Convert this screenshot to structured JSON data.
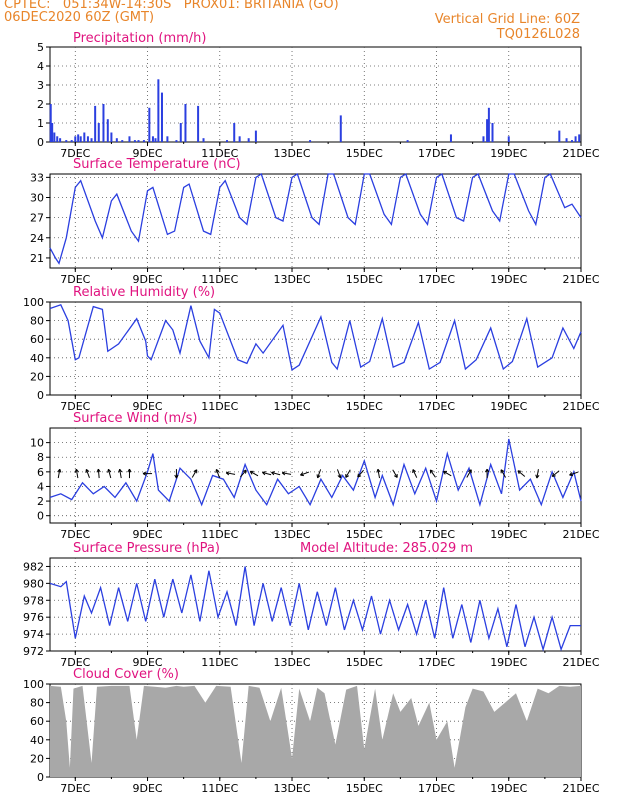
{
  "header": {
    "line1": "CPTEC:   051:34W-14:30S   PROX01: BRITANIA (GO)",
    "line2_left": "06DEC2020 60Z (GMT)",
    "line2_right": "Vertical Grid Line: 60Z",
    "line3_right": "TQ0126L028"
  },
  "colors": {
    "header": "#e8852a",
    "title": "#e0137f",
    "series": "#2b3fe0",
    "cloud": "#a8a8a8",
    "arrow": "#000000"
  },
  "x_axis": {
    "labels": [
      "7DEC",
      "9DEC",
      "11DEC",
      "13DEC",
      "15DEC",
      "17DEC",
      "19DEC",
      "21DEC"
    ],
    "label_days": [
      1,
      3,
      5,
      7,
      9,
      11,
      13,
      15
    ],
    "start_day": 0.3,
    "end_day": 15.0
  },
  "chart_data": [
    {
      "type": "bar",
      "title": "Precipitation (mm/h)",
      "ylim": [
        0,
        5
      ],
      "yticks": [
        "0",
        "1",
        "2",
        "3",
        "4",
        "5"
      ],
      "x_days": [
        0.32,
        0.36,
        0.42,
        0.5,
        0.58,
        0.75,
        0.9,
        1.0,
        1.08,
        1.15,
        1.25,
        1.35,
        1.45,
        1.55,
        1.65,
        1.78,
        1.9,
        2.0,
        2.15,
        2.3,
        2.5,
        2.65,
        2.75,
        2.9,
        3.05,
        3.15,
        3.22,
        3.3,
        3.4,
        3.55,
        3.8,
        3.92,
        4.05,
        4.4,
        4.55,
        5.2,
        5.4,
        5.55,
        5.8,
        6.0,
        7.5,
        8.35,
        10.2,
        11.4,
        12.3,
        12.4,
        12.45,
        12.55,
        13.0,
        14.4,
        14.6,
        14.75,
        14.85,
        14.95
      ],
      "values": [
        2.0,
        1.0,
        0.5,
        0.3,
        0.2,
        0.1,
        0.1,
        0.3,
        0.4,
        0.3,
        0.5,
        0.3,
        0.2,
        1.9,
        1.0,
        2.0,
        1.2,
        0.5,
        0.2,
        0.1,
        0.3,
        0.1,
        0.1,
        0.1,
        1.8,
        0.3,
        0.2,
        3.3,
        2.6,
        0.3,
        0.1,
        1.0,
        2.0,
        1.9,
        0.2,
        0.1,
        1.0,
        0.3,
        0.2,
        0.6,
        0.1,
        1.4,
        0.1,
        0.4,
        0.3,
        1.2,
        1.8,
        1.0,
        0.3,
        0.6,
        0.2,
        0.1,
        0.3,
        0.4
      ]
    },
    {
      "type": "line",
      "title": "Surface Temperature (nC)",
      "ylim": [
        19.5,
        33.5
      ],
      "yticks": [
        "21",
        "24",
        "27",
        "30",
        "33"
      ],
      "x_days": [
        0.3,
        0.45,
        0.55,
        0.75,
        1.0,
        1.15,
        1.55,
        1.75,
        2.0,
        2.15,
        2.55,
        2.75,
        3.0,
        3.15,
        3.55,
        3.75,
        4.0,
        4.15,
        4.55,
        4.75,
        5.0,
        5.15,
        5.55,
        5.75,
        6.0,
        6.15,
        6.55,
        6.75,
        7.0,
        7.15,
        7.55,
        7.75,
        8.0,
        8.15,
        8.55,
        8.75,
        9.0,
        9.15,
        9.55,
        9.75,
        10.0,
        10.15,
        10.55,
        10.75,
        11.0,
        11.15,
        11.55,
        11.75,
        12.0,
        12.15,
        12.55,
        12.75,
        13.0,
        13.15,
        13.55,
        13.75,
        14.0,
        14.15,
        14.55,
        14.75,
        15.0
      ],
      "values": [
        22.5,
        21.0,
        20.2,
        24,
        31.5,
        32.5,
        26.5,
        24,
        29.5,
        30.5,
        25,
        23.5,
        31,
        31.5,
        24.5,
        25,
        31.5,
        32,
        25,
        24.5,
        31.5,
        32.5,
        27,
        26,
        33,
        33.5,
        27,
        26.5,
        33,
        33.5,
        27,
        26,
        33.5,
        33.5,
        27,
        26,
        33.5,
        33.5,
        27.5,
        26,
        33,
        33.5,
        27.5,
        26,
        33,
        33.5,
        27,
        26.5,
        33,
        33.5,
        28,
        26.5,
        33.5,
        33.5,
        28,
        26,
        33,
        33.5,
        28.5,
        29,
        27
      ]
    },
    {
      "type": "line",
      "title": "Relative Humidity (%)",
      "ylim": [
        0,
        100
      ],
      "yticks": [
        "0",
        "20",
        "40",
        "60",
        "80",
        "100"
      ],
      "x_days": [
        0.3,
        0.6,
        0.8,
        1.0,
        1.1,
        1.5,
        1.75,
        1.9,
        2.2,
        2.7,
        2.95,
        3.0,
        3.1,
        3.5,
        3.7,
        3.9,
        4.2,
        4.45,
        4.7,
        4.85,
        5.0,
        5.5,
        5.75,
        6.0,
        6.2,
        6.75,
        7.0,
        7.2,
        7.8,
        8.1,
        8.25,
        8.6,
        8.9,
        9.15,
        9.5,
        9.8,
        10.1,
        10.5,
        10.8,
        11.1,
        11.5,
        11.8,
        12.1,
        12.5,
        12.85,
        13.1,
        13.5,
        13.8,
        14.2,
        14.5,
        14.8,
        15.0
      ],
      "values": [
        93,
        97,
        80,
        38,
        40,
        95,
        92,
        47,
        55,
        82,
        58,
        42,
        38,
        80,
        70,
        45,
        96,
        58,
        40,
        92,
        88,
        38,
        34,
        55,
        45,
        75,
        27,
        32,
        84,
        35,
        28,
        80,
        30,
        36,
        82,
        30,
        35,
        78,
        28,
        35,
        80,
        28,
        38,
        72,
        28,
        36,
        82,
        30,
        40,
        72,
        50,
        68
      ]
    },
    {
      "type": "line",
      "title": "Surface Wind (m/s)",
      "ylim": [
        -1,
        12
      ],
      "yticks": [
        "0",
        "2",
        "4",
        "6",
        "8",
        "10"
      ],
      "x_days": [
        0.3,
        0.6,
        0.9,
        1.2,
        1.5,
        1.8,
        2.1,
        2.4,
        2.7,
        3.0,
        3.15,
        3.3,
        3.6,
        3.9,
        4.2,
        4.5,
        4.8,
        5.1,
        5.4,
        5.7,
        6.0,
        6.3,
        6.6,
        6.9,
        7.2,
        7.5,
        7.8,
        8.1,
        8.4,
        8.7,
        9.0,
        9.3,
        9.5,
        9.8,
        10.1,
        10.4,
        10.7,
        11.0,
        11.3,
        11.6,
        11.9,
        12.2,
        12.5,
        12.8,
        13.0,
        13.3,
        13.6,
        13.9,
        14.2,
        14.5,
        14.8,
        15.0
      ],
      "values": [
        2.5,
        3.0,
        2.2,
        4.5,
        3.0,
        4.0,
        2.5,
        4.5,
        2.0,
        6.0,
        8.5,
        3.5,
        2.0,
        6.5,
        5.0,
        1.5,
        5.5,
        5.0,
        2.5,
        7.0,
        3.5,
        1.5,
        5.0,
        3.0,
        4.0,
        1.5,
        5.0,
        2.5,
        5.5,
        3.5,
        7.5,
        2.5,
        5.5,
        1.5,
        7.0,
        3.0,
        6.5,
        2.0,
        8.5,
        3.5,
        6.5,
        1.5,
        7.0,
        3.0,
        10.5,
        3.5,
        5.0,
        1.5,
        6.0,
        2.5,
        6.0,
        2.0
      ],
      "arrows_days": [
        0.55,
        1.05,
        1.35,
        1.65,
        1.95,
        2.25,
        2.5,
        3.0,
        3.8,
        4.3,
        4.95,
        5.3,
        5.65,
        5.95,
        6.3,
        6.55,
        6.85,
        7.35,
        7.75,
        8.3,
        8.55,
        8.9,
        9.4,
        9.85,
        10.4,
        10.9,
        11.3,
        11.9,
        12.4,
        12.85,
        13.35,
        13.8,
        14.3,
        14.8
      ],
      "arrows_angles": [
        80,
        100,
        110,
        95,
        105,
        100,
        90,
        180,
        270,
        60,
        110,
        170,
        50,
        150,
        165,
        165,
        170,
        200,
        250,
        290,
        240,
        230,
        100,
        300,
        115,
        125,
        150,
        60,
        90,
        120,
        140,
        260,
        220,
        200
      ]
    },
    {
      "type": "line",
      "title": "Surface Pressure (hPa)",
      "annotation": "Model Altitude: 285.029 m",
      "ylim": [
        972,
        983
      ],
      "yticks": [
        "972",
        "974",
        "976",
        "978",
        "980",
        "982"
      ],
      "x_days": [
        0.3,
        0.6,
        0.75,
        1.0,
        1.25,
        1.45,
        1.7,
        1.95,
        2.2,
        2.45,
        2.7,
        2.95,
        3.2,
        3.45,
        3.7,
        3.95,
        4.2,
        4.45,
        4.7,
        4.95,
        5.2,
        5.45,
        5.7,
        5.95,
        6.2,
        6.45,
        6.7,
        6.95,
        7.2,
        7.45,
        7.7,
        7.95,
        8.2,
        8.45,
        8.7,
        8.95,
        9.2,
        9.45,
        9.7,
        9.95,
        10.2,
        10.45,
        10.7,
        10.95,
        11.2,
        11.45,
        11.7,
        11.95,
        12.2,
        12.45,
        12.7,
        12.95,
        13.2,
        13.45,
        13.7,
        13.95,
        14.2,
        14.45,
        14.7,
        15.0
      ],
      "values": [
        980,
        979.6,
        980.2,
        973.5,
        978.5,
        976.5,
        979.5,
        975,
        979.5,
        975.5,
        980,
        975.5,
        980.5,
        976,
        980.5,
        976.5,
        981,
        975.5,
        981.5,
        976,
        979,
        975,
        982,
        975,
        980,
        975.5,
        979.5,
        975,
        980,
        974.5,
        979,
        975,
        979.5,
        974.5,
        978,
        974.5,
        978.5,
        974,
        978,
        974.5,
        977.5,
        974,
        978,
        973.5,
        979.5,
        973.5,
        977.5,
        973,
        978,
        973.5,
        977,
        972.5,
        977.5,
        972.5,
        976,
        972.2,
        976,
        972.2,
        975,
        975
      ]
    },
    {
      "type": "area",
      "title": "Cloud Cover (%)",
      "ylim": [
        0,
        100
      ],
      "yticks": [
        "0",
        "20",
        "40",
        "60",
        "80",
        "100"
      ],
      "x_days": [
        0.3,
        0.6,
        0.75,
        0.85,
        0.95,
        1.2,
        1.45,
        1.6,
        2.0,
        2.5,
        2.7,
        2.9,
        3.2,
        3.5,
        3.8,
        4.0,
        4.3,
        4.6,
        4.9,
        5.3,
        5.6,
        5.8,
        6.1,
        6.4,
        6.7,
        7.0,
        7.2,
        7.5,
        7.7,
        7.9,
        8.2,
        8.5,
        8.8,
        9.0,
        9.3,
        9.5,
        9.8,
        10.0,
        10.3,
        10.5,
        10.8,
        11.0,
        11.3,
        11.5,
        11.8,
        12.0,
        12.3,
        12.6,
        12.9,
        13.2,
        13.5,
        13.8,
        14.1,
        14.4,
        14.7,
        15.0
      ],
      "values": [
        98,
        97,
        60,
        10,
        95,
        98,
        15,
        97,
        98,
        98,
        40,
        98,
        97,
        96,
        98,
        97,
        98,
        80,
        98,
        97,
        15,
        98,
        96,
        60,
        96,
        20,
        95,
        60,
        96,
        90,
        35,
        94,
        98,
        30,
        95,
        40,
        90,
        70,
        85,
        55,
        80,
        40,
        60,
        10,
        75,
        95,
        92,
        70,
        80,
        90,
        60,
        95,
        90,
        98,
        97,
        98
      ]
    }
  ]
}
